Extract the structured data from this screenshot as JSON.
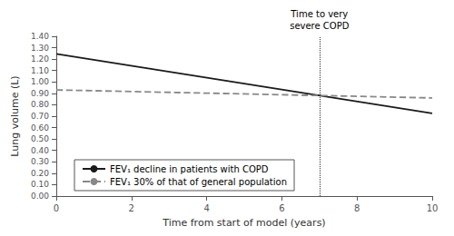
{
  "chart_data": {
    "type": "line",
    "xlabel": "Time from start of model (years)",
    "ylabel": "Lung volume (L)",
    "x": [
      0,
      10
    ],
    "series": [
      {
        "name": "FEV₁ decline in patients with COPD",
        "color": "#1a1a1a",
        "line_style": "solid",
        "values": [
          1.245,
          0.725
        ]
      },
      {
        "name": "FEV₁ 30% of that of general population",
        "color": "#888888",
        "line_style": "dashed",
        "values": [
          0.93,
          0.86
        ]
      }
    ],
    "xlim": [
      0,
      10
    ],
    "ylim": [
      0.0,
      1.4
    ],
    "xticks": [
      0,
      2,
      4,
      6,
      8,
      10
    ],
    "yticks": [
      {
        "value": 0.0,
        "label": "0.00"
      },
      {
        "value": 0.1,
        "label": "0.10"
      },
      {
        "value": 0.2,
        "label": "0.20"
      },
      {
        "value": 0.3,
        "label": "0.30"
      },
      {
        "value": 0.4,
        "label": "0.40"
      },
      {
        "value": 0.5,
        "label": "0.50"
      },
      {
        "value": 0.6,
        "label": "0.60"
      },
      {
        "value": 0.7,
        "label": "0.70"
      },
      {
        "value": 0.8,
        "label": "0.80"
      },
      {
        "value": 0.9,
        "label": "0.90"
      },
      {
        "value": 1.0,
        "label": "1.00"
      },
      {
        "value": 1.1,
        "label": "1.10"
      },
      {
        "value": 1.2,
        "label": "1.20"
      },
      {
        "value": 1.3,
        "label": "1.30"
      },
      {
        "value": 1.4,
        "label": "1.40"
      }
    ],
    "grid": false,
    "legend": "lower left",
    "annotations": [
      {
        "x": 7.0,
        "text": "Time to very\nsevere COPD",
        "color": "#333333",
        "line_style": "dotted"
      }
    ]
  }
}
